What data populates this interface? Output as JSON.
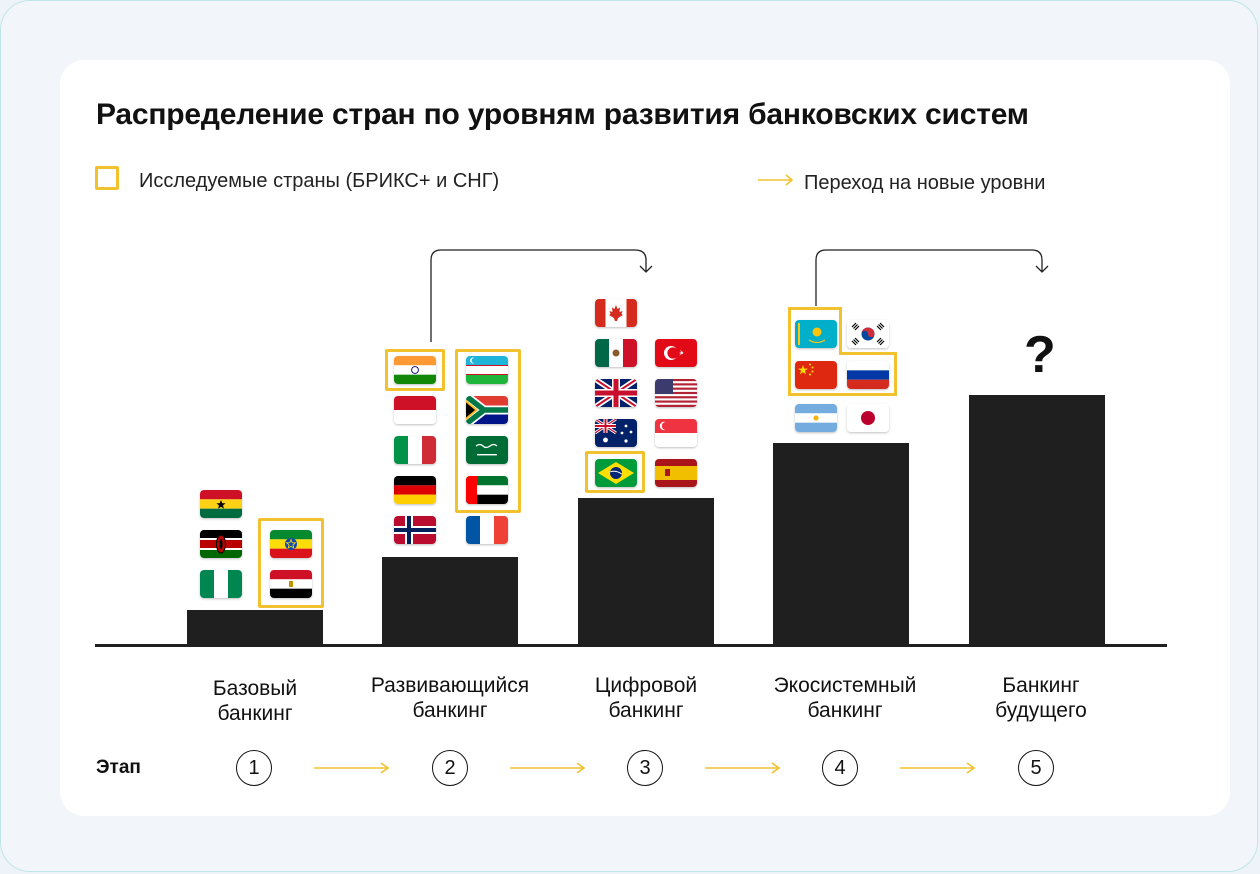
{
  "title": "Распределение стран по уровням развития банковских систем",
  "legend": {
    "studied": "Исследуемые страны (БРИКС+ и СНГ)",
    "transition": "Переход на новые уровни"
  },
  "colors": {
    "highlight": "#f2c12e",
    "bar": "#1f1f1f",
    "arrow": "#f2c12e"
  },
  "stage_caption": "Этап",
  "levels": [
    {
      "label": "Базовый\nбанкинг",
      "number": "1",
      "countries": [
        "ghana",
        "kenya",
        "nigeria",
        "ethiopia",
        "egypt"
      ]
    },
    {
      "label": "Развивающийся\nбанкинг",
      "number": "2",
      "countries": [
        "india",
        "indonesia",
        "italy",
        "germany",
        "norway",
        "uzbekistan",
        "south-africa",
        "saudi-arabia",
        "uae",
        "france"
      ]
    },
    {
      "label": "Цифровой\nбанкинг",
      "number": "3",
      "countries": [
        "canada",
        "mexico",
        "turkey",
        "uk",
        "usa",
        "australia",
        "singapore",
        "brazil",
        "spain"
      ]
    },
    {
      "label": "Экосистемный\nбанкинг",
      "number": "4",
      "countries": [
        "kazakhstan",
        "south-korea",
        "china",
        "russia",
        "argentina",
        "japan"
      ]
    },
    {
      "label": "Банкинг\nбудущего",
      "number": "5",
      "countries": []
    }
  ],
  "unknown_mark": "?"
}
